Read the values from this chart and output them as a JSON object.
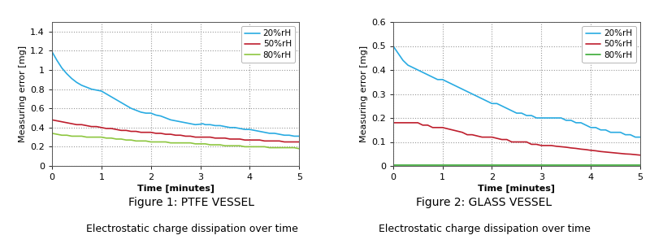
{
  "fig1": {
    "title": "Figure 1: PTFE VESSEL",
    "subtitle": "Electrostatic charge dissipation over time",
    "xlabel": "Time [minutes]",
    "ylabel": "Measuring error [mg]",
    "ylim": [
      0,
      1.5
    ],
    "yticks": [
      0,
      0.2,
      0.4,
      0.6,
      0.8,
      1.0,
      1.2,
      1.4
    ],
    "yticklabels": [
      "0",
      "0.2",
      "0.4",
      "0.6",
      "0.8",
      "1",
      "1.2",
      "1.4"
    ],
    "xlim": [
      0,
      5
    ],
    "xticks": [
      0,
      1,
      2,
      3,
      4,
      5
    ],
    "series": {
      "20%rH": {
        "color": "#29ABE2",
        "x": [
          0,
          0.1,
          0.2,
          0.3,
          0.4,
          0.5,
          0.6,
          0.7,
          0.8,
          0.9,
          1.0,
          1.1,
          1.2,
          1.3,
          1.4,
          1.5,
          1.6,
          1.7,
          1.8,
          1.9,
          2.0,
          2.1,
          2.2,
          2.3,
          2.4,
          2.5,
          2.6,
          2.7,
          2.8,
          2.9,
          3.0,
          3.05,
          3.1,
          3.2,
          3.3,
          3.4,
          3.5,
          3.6,
          3.7,
          3.8,
          3.9,
          4.0,
          4.1,
          4.2,
          4.3,
          4.4,
          4.5,
          4.6,
          4.7,
          4.8,
          4.9,
          5.0
        ],
        "y": [
          1.19,
          1.1,
          1.02,
          0.96,
          0.91,
          0.87,
          0.84,
          0.82,
          0.8,
          0.79,
          0.78,
          0.75,
          0.72,
          0.69,
          0.66,
          0.63,
          0.6,
          0.58,
          0.56,
          0.55,
          0.55,
          0.53,
          0.52,
          0.5,
          0.48,
          0.47,
          0.46,
          0.45,
          0.44,
          0.43,
          0.435,
          0.44,
          0.43,
          0.43,
          0.42,
          0.42,
          0.41,
          0.4,
          0.4,
          0.39,
          0.38,
          0.38,
          0.37,
          0.36,
          0.35,
          0.34,
          0.34,
          0.33,
          0.32,
          0.32,
          0.31,
          0.31
        ]
      },
      "50%rH": {
        "color": "#BE1E2D",
        "x": [
          0,
          0.1,
          0.2,
          0.3,
          0.4,
          0.5,
          0.6,
          0.7,
          0.8,
          0.9,
          1.0,
          1.1,
          1.2,
          1.3,
          1.4,
          1.5,
          1.6,
          1.7,
          1.8,
          1.9,
          2.0,
          2.1,
          2.2,
          2.3,
          2.4,
          2.5,
          2.6,
          2.7,
          2.8,
          2.9,
          3.0,
          3.1,
          3.2,
          3.3,
          3.4,
          3.5,
          3.6,
          3.7,
          3.8,
          3.9,
          4.0,
          4.1,
          4.2,
          4.3,
          4.4,
          4.5,
          4.6,
          4.7,
          4.8,
          4.9,
          5.0
        ],
        "y": [
          0.48,
          0.47,
          0.46,
          0.45,
          0.44,
          0.43,
          0.43,
          0.42,
          0.41,
          0.41,
          0.4,
          0.39,
          0.39,
          0.38,
          0.37,
          0.37,
          0.36,
          0.36,
          0.35,
          0.35,
          0.35,
          0.34,
          0.34,
          0.33,
          0.33,
          0.32,
          0.32,
          0.31,
          0.31,
          0.3,
          0.3,
          0.3,
          0.3,
          0.29,
          0.29,
          0.29,
          0.28,
          0.28,
          0.28,
          0.27,
          0.27,
          0.27,
          0.27,
          0.26,
          0.26,
          0.26,
          0.26,
          0.25,
          0.25,
          0.25,
          0.25
        ]
      },
      "80%rH": {
        "color": "#8DC63F",
        "x": [
          0,
          0.1,
          0.2,
          0.3,
          0.4,
          0.5,
          0.6,
          0.7,
          0.8,
          0.9,
          1.0,
          1.1,
          1.2,
          1.3,
          1.4,
          1.5,
          1.6,
          1.7,
          1.8,
          1.9,
          2.0,
          2.1,
          2.2,
          2.3,
          2.4,
          2.5,
          2.6,
          2.7,
          2.8,
          2.9,
          3.0,
          3.1,
          3.2,
          3.3,
          3.4,
          3.5,
          3.6,
          3.7,
          3.8,
          3.9,
          4.0,
          4.1,
          4.2,
          4.3,
          4.4,
          4.5,
          4.6,
          4.7,
          4.8,
          4.9,
          5.0
        ],
        "y": [
          0.34,
          0.33,
          0.32,
          0.32,
          0.31,
          0.31,
          0.31,
          0.3,
          0.3,
          0.3,
          0.3,
          0.29,
          0.29,
          0.28,
          0.28,
          0.27,
          0.27,
          0.26,
          0.26,
          0.26,
          0.25,
          0.25,
          0.25,
          0.25,
          0.24,
          0.24,
          0.24,
          0.24,
          0.24,
          0.23,
          0.23,
          0.23,
          0.22,
          0.22,
          0.22,
          0.21,
          0.21,
          0.21,
          0.21,
          0.2,
          0.2,
          0.2,
          0.2,
          0.2,
          0.19,
          0.19,
          0.19,
          0.19,
          0.19,
          0.19,
          0.18
        ]
      }
    }
  },
  "fig2": {
    "title": "Figure 2: GLASS VESSEL",
    "subtitle": "Electrostatic charge dissipation over time",
    "xlabel": "Time [minutes]",
    "ylabel": "Measuring error [mg]",
    "ylim": [
      0,
      0.6
    ],
    "yticks": [
      0,
      0.1,
      0.2,
      0.3,
      0.4,
      0.5,
      0.6
    ],
    "yticklabels": [
      "0",
      "0.1",
      "0.2",
      "0.3",
      "0.4",
      "0.5",
      "0.6"
    ],
    "xlim": [
      0,
      5
    ],
    "xticks": [
      0,
      1,
      2,
      3,
      4,
      5
    ],
    "series": {
      "20%rH": {
        "color": "#29ABE2",
        "x": [
          0,
          0.1,
          0.2,
          0.3,
          0.4,
          0.5,
          0.6,
          0.7,
          0.8,
          0.9,
          1.0,
          1.1,
          1.2,
          1.3,
          1.4,
          1.5,
          1.6,
          1.7,
          1.8,
          1.9,
          2.0,
          2.1,
          2.2,
          2.3,
          2.4,
          2.5,
          2.6,
          2.7,
          2.8,
          2.9,
          3.0,
          3.1,
          3.2,
          3.3,
          3.4,
          3.5,
          3.6,
          3.7,
          3.8,
          3.9,
          4.0,
          4.1,
          4.2,
          4.3,
          4.4,
          4.5,
          4.6,
          4.7,
          4.8,
          4.9,
          5.0
        ],
        "y": [
          0.5,
          0.47,
          0.44,
          0.42,
          0.41,
          0.4,
          0.39,
          0.38,
          0.37,
          0.36,
          0.36,
          0.35,
          0.34,
          0.33,
          0.32,
          0.31,
          0.3,
          0.29,
          0.28,
          0.27,
          0.26,
          0.26,
          0.25,
          0.24,
          0.23,
          0.22,
          0.22,
          0.21,
          0.21,
          0.2,
          0.2,
          0.2,
          0.2,
          0.2,
          0.2,
          0.19,
          0.19,
          0.18,
          0.18,
          0.17,
          0.16,
          0.16,
          0.15,
          0.15,
          0.14,
          0.14,
          0.14,
          0.13,
          0.13,
          0.12,
          0.12
        ]
      },
      "50%rH": {
        "color": "#BE1E2D",
        "x": [
          0,
          0.1,
          0.2,
          0.3,
          0.4,
          0.5,
          0.6,
          0.7,
          0.8,
          0.9,
          1.0,
          1.1,
          1.2,
          1.3,
          1.4,
          1.5,
          1.6,
          1.7,
          1.8,
          1.9,
          2.0,
          2.1,
          2.2,
          2.3,
          2.4,
          2.5,
          2.6,
          2.7,
          2.8,
          2.9,
          3.0,
          3.1,
          3.2,
          3.3,
          3.4,
          3.5,
          3.6,
          3.7,
          3.8,
          3.9,
          4.0,
          4.1,
          4.2,
          4.3,
          4.4,
          4.5,
          4.6,
          4.7,
          4.8,
          4.9,
          5.0
        ],
        "y": [
          0.18,
          0.18,
          0.18,
          0.18,
          0.18,
          0.18,
          0.17,
          0.17,
          0.16,
          0.16,
          0.16,
          0.155,
          0.15,
          0.145,
          0.14,
          0.13,
          0.13,
          0.125,
          0.12,
          0.12,
          0.12,
          0.115,
          0.11,
          0.11,
          0.1,
          0.1,
          0.1,
          0.1,
          0.09,
          0.09,
          0.085,
          0.085,
          0.085,
          0.082,
          0.08,
          0.078,
          0.075,
          0.073,
          0.07,
          0.068,
          0.065,
          0.063,
          0.06,
          0.058,
          0.056,
          0.054,
          0.052,
          0.05,
          0.049,
          0.047,
          0.045
        ]
      },
      "80%rH": {
        "color": "#3AAA35",
        "x": [
          0,
          5.0
        ],
        "y": [
          0.002,
          0.002
        ]
      }
    }
  },
  "background_color": "#ffffff",
  "grid_color": "#999999",
  "line_width": 1.2,
  "legend_fontsize": 7.5,
  "axis_label_fontsize": 8,
  "tick_fontsize": 8,
  "caption_title_fontsize": 10,
  "caption_subtitle_fontsize": 9
}
